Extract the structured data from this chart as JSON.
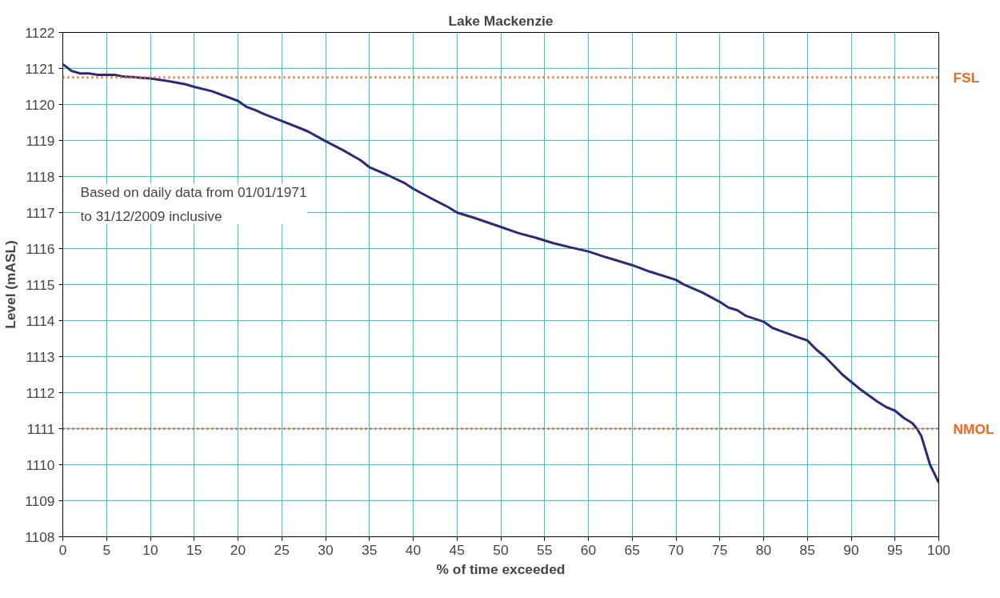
{
  "chart_data": {
    "type": "line",
    "title": "Lake Mackenzie",
    "xlabel": "% of time exceeded",
    "ylabel": "Level (mASL)",
    "annotations": [
      "Based on daily data from 01/01/1971\nto 31/12/2009 inclusive"
    ],
    "x": [
      0,
      1,
      2,
      3,
      4,
      5,
      6,
      7,
      8,
      9,
      10,
      12,
      14,
      15,
      17,
      20,
      21,
      22,
      23,
      25,
      27,
      28,
      30,
      32,
      34,
      35,
      37,
      39,
      40,
      42,
      44,
      45,
      47,
      50,
      52,
      54,
      56,
      58,
      60,
      62,
      65,
      67,
      70,
      71,
      73,
      75,
      76,
      77,
      78,
      80,
      81,
      82,
      84,
      85,
      86,
      87,
      88,
      89,
      90,
      91,
      93,
      94,
      95,
      96,
      97,
      97.5,
      98,
      99,
      100
    ],
    "series": [
      {
        "color": "#2e2a7a",
        "values": [
          1121.12,
          1120.93,
          1120.86,
          1120.86,
          1120.82,
          1120.82,
          1120.82,
          1120.77,
          1120.76,
          1120.74,
          1120.72,
          1120.65,
          1120.56,
          1120.49,
          1120.37,
          1120.1,
          1119.93,
          1119.84,
          1119.73,
          1119.54,
          1119.35,
          1119.25,
          1118.98,
          1118.73,
          1118.45,
          1118.26,
          1118.05,
          1117.82,
          1117.66,
          1117.4,
          1117.15,
          1117.0,
          1116.85,
          1116.6,
          1116.43,
          1116.3,
          1116.15,
          1116.03,
          1115.92,
          1115.76,
          1115.54,
          1115.36,
          1115.13,
          1114.99,
          1114.78,
          1114.52,
          1114.36,
          1114.29,
          1114.13,
          1113.97,
          1113.8,
          1113.71,
          1113.53,
          1113.45,
          1113.2,
          1113.0,
          1112.75,
          1112.5,
          1112.3,
          1112.1,
          1111.75,
          1111.6,
          1111.5,
          1111.3,
          1111.15,
          1111.0,
          1110.8,
          1110.0,
          1109.5
        ]
      }
    ],
    "xlim": [
      0,
      100
    ],
    "xticks": [
      0,
      5,
      10,
      15,
      20,
      25,
      30,
      35,
      40,
      45,
      50,
      55,
      60,
      65,
      70,
      75,
      80,
      85,
      90,
      95,
      100
    ],
    "ylim": [
      1108,
      1122
    ],
    "yticks": [
      1108,
      1109,
      1110,
      1111,
      1112,
      1113,
      1114,
      1115,
      1116,
      1117,
      1118,
      1119,
      1120,
      1121,
      1122
    ],
    "grid": true,
    "marker": "none",
    "line_style": "solid",
    "ref_lines": [
      {
        "axis": "y",
        "value": 1120.75,
        "label": "FSL",
        "color": "#f26522",
        "line_style": "dotted"
      },
      {
        "axis": "y",
        "value": 1111,
        "label": "NMOL",
        "color": "#f26522",
        "line_style": "dotted"
      }
    ]
  }
}
